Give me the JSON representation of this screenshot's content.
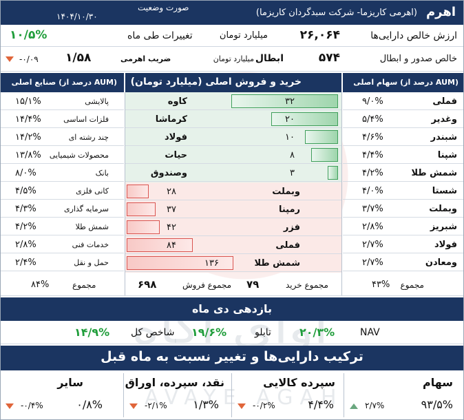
{
  "header": {
    "fund_name": "اهرم",
    "fund_desc": "(اهرمی کاریزما- شرکت سبدگردان کاریزما)",
    "report_label": "صورت وضعیت",
    "report_date": "۱۴۰۴/۱۰/۳۰"
  },
  "nav_row": {
    "label": "ارزش خالص دارایی‌ها",
    "value": "۲۶,۰۶۴",
    "unit": "میلیارد تومان",
    "change_label": "تغییرات طی ماه",
    "change_value": "۱۰/۵%"
  },
  "flow_row": {
    "label": "خالص صدور و ابطال",
    "value": "۵۷۴",
    "unit": "میلیارد تومان",
    "type": "ابطال",
    "leverage_label": "ضریب اهرمی",
    "leverage_value": "۱/۵۸",
    "leverage_change": "-۰/۰۹"
  },
  "stocks": {
    "title": "سهام اصلی (درصد از AUM)",
    "items": [
      {
        "name": "فملی",
        "value": "۹/۰%"
      },
      {
        "name": "وغدیر",
        "value": "۵/۴%"
      },
      {
        "name": "شبندر",
        "value": "۴/۶%"
      },
      {
        "name": "شپنا",
        "value": "۴/۴%"
      },
      {
        "name": "شمش طلا",
        "value": "۴/۲%"
      },
      {
        "name": "شستا",
        "value": "۴/۰%"
      },
      {
        "name": "وبملت",
        "value": "۳/۷%"
      },
      {
        "name": "شبریز",
        "value": "۲/۸%"
      },
      {
        "name": "فولاد",
        "value": "۲/۷%"
      },
      {
        "name": "ومعادن",
        "value": "۲/۷%"
      }
    ],
    "total_label": "مجموع",
    "total_value": "۴۳%"
  },
  "trades": {
    "title": "خرید و فروش اصلی (میلیارد تومان)",
    "buys": [
      {
        "name": "کاوه",
        "value": "۳۲",
        "amount": 32
      },
      {
        "name": "کرماشا",
        "value": "۲۰",
        "amount": 20
      },
      {
        "name": "فولاد",
        "value": "۱۰",
        "amount": 10
      },
      {
        "name": "حیات",
        "value": "۸",
        "amount": 8
      },
      {
        "name": "وصندوق",
        "value": "۳",
        "amount": 3
      }
    ],
    "sells": [
      {
        "name": "وبملت",
        "value": "۲۸",
        "amount": 28
      },
      {
        "name": "رمپنا",
        "value": "۳۷",
        "amount": 37
      },
      {
        "name": "فزر",
        "value": "۴۲",
        "amount": 42
      },
      {
        "name": "فملی",
        "value": "۸۴",
        "amount": 84
      },
      {
        "name": "شمش طلا",
        "value": "۱۳۶",
        "amount": 136
      }
    ],
    "total_buy_label": "مجموع خرید",
    "total_buy_value": "۷۹",
    "total_sell_label": "مجموع فروش",
    "total_sell_value": "۶۹۸"
  },
  "industries": {
    "title": "صنایع اصلی (درصد از AUM)",
    "items": [
      {
        "name": "پالایشی",
        "value": "۱۵/۱%"
      },
      {
        "name": "فلزات اساسی",
        "value": "۱۴/۴%"
      },
      {
        "name": "چند رشته ای",
        "value": "۱۴/۲%"
      },
      {
        "name": "محصولات شیمیایی",
        "value": "۱۳/۸%"
      },
      {
        "name": "بانک",
        "value": "۸/۰%"
      },
      {
        "name": "کانی فلزی",
        "value": "۴/۵%"
      },
      {
        "name": "سرمایه گذاری",
        "value": "۴/۳%"
      },
      {
        "name": "شمش طلا",
        "value": "۴/۲%"
      },
      {
        "name": "خدمات فنی",
        "value": "۲/۸%"
      },
      {
        "name": "حمل و نقل",
        "value": "۲/۴%"
      }
    ],
    "total_label": "مجموع",
    "total_value": "۸۴%"
  },
  "returns": {
    "title": "بازدهی دی ماه",
    "nav_label": "NAV",
    "nav_value": "۲۰/۳%",
    "board_label": "تابلو",
    "board_value": "۱۹/۶%",
    "index_label": "شاخص کل",
    "index_value": "۱۴/۹%"
  },
  "composition": {
    "title": "ترکیب دارایی‌ها و تغییر نسبت به ماه قبل",
    "items": [
      {
        "name": "سهام",
        "value": "۹۳/۵%",
        "change": "۲/۷%",
        "direction": "up"
      },
      {
        "name": "سپرده کالایی",
        "value": "۴/۴%",
        "change": "-۰/۲%",
        "direction": "down"
      },
      {
        "name": "نقد، سپرده، اوراق",
        "value": "۱/۳%",
        "change": "-۲/۱%",
        "direction": "down"
      },
      {
        "name": "سایر",
        "value": "۰/۸%",
        "change": "-۰/۴%",
        "direction": "down"
      }
    ]
  },
  "watermark": {
    "text_fa": "آوای آگاه",
    "text_en": "AVAYE AGAH"
  },
  "colors": {
    "navy": "#1b3561",
    "green": "#1f9d3a",
    "red": "#d9534f",
    "down_arrow": "#e0653a",
    "up_arrow": "#6aa77f"
  }
}
